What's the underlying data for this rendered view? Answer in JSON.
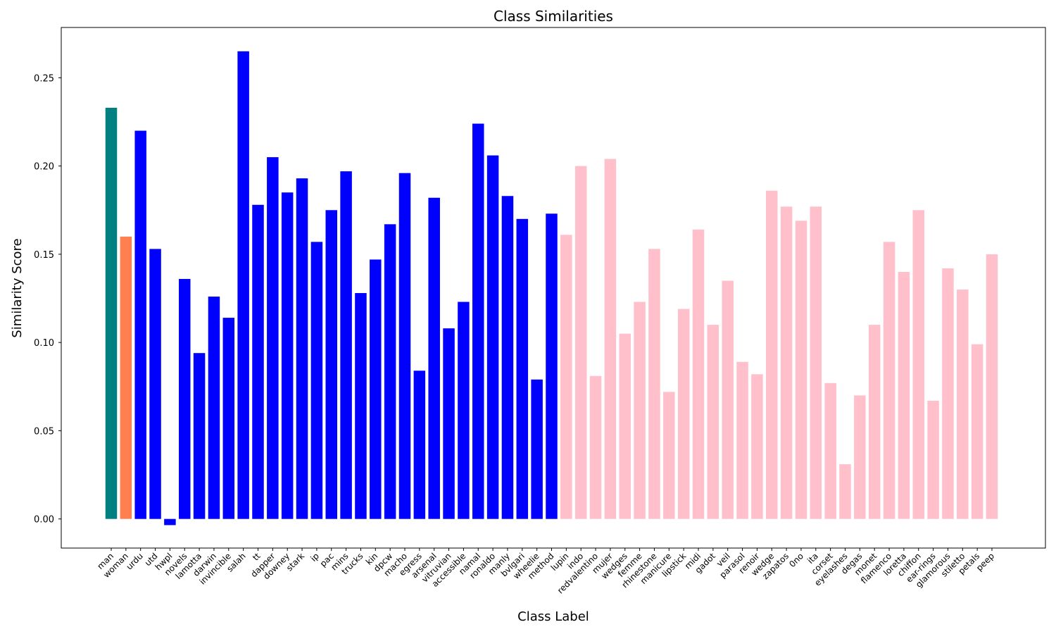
{
  "chart_data": {
    "type": "bar",
    "title": "Class Similarities",
    "xlabel": "Class Label",
    "ylabel": "Similarity Score",
    "ylim": [
      -0.0165,
      0.2785
    ],
    "yticks": [
      "0.00",
      "0.05",
      "0.10",
      "0.15",
      "0.20",
      "0.25"
    ],
    "ytick_values": [
      0.0,
      0.05,
      0.1,
      0.15,
      0.2,
      0.25
    ],
    "grid": false,
    "legend": "none",
    "categories": [
      "man",
      "woman",
      "urdu",
      "utd",
      "hwpl",
      "novels",
      "lamotta",
      "darwin",
      "invincible",
      "salah",
      "tt",
      "dapper",
      "downey",
      "stark",
      "ip",
      "pac",
      "mins",
      "trucks",
      "kin",
      "dpcw",
      "macho",
      "egress",
      "arsenal",
      "vitruvian",
      "accessible",
      "namal",
      "ronaldo",
      "manly",
      "bvlgari",
      "wheelie",
      "method",
      "lupin",
      "indo",
      "redvalentino",
      "mujer",
      "wedges",
      "femme",
      "rhinestone",
      "manicure",
      "lipstick",
      "midi",
      "gadot",
      "veil",
      "parasol",
      "renoir",
      "wedge",
      "zapatos",
      "0no",
      "ita",
      "corset",
      "eyelashes",
      "degas",
      "monet",
      "flamenco",
      "loretta",
      "chiffon",
      "ear-rings",
      "glamorous",
      "stiletto",
      "petals",
      "peep"
    ],
    "values": [
      0.233,
      0.16,
      0.22,
      0.153,
      -0.0035,
      0.136,
      0.094,
      0.126,
      0.114,
      0.265,
      0.178,
      0.205,
      0.185,
      0.193,
      0.157,
      0.175,
      0.197,
      0.128,
      0.147,
      0.167,
      0.196,
      0.084,
      0.182,
      0.108,
      0.123,
      0.224,
      0.206,
      0.183,
      0.17,
      0.079,
      0.173,
      0.161,
      0.2,
      0.081,
      0.204,
      0.105,
      0.123,
      0.153,
      0.072,
      0.119,
      0.164,
      0.11,
      0.135,
      0.089,
      0.082,
      0.186,
      0.177,
      0.169,
      0.177,
      0.077,
      0.031,
      0.07,
      0.11,
      0.157,
      0.14,
      0.175,
      0.067,
      0.142,
      0.13,
      0.099,
      0.15
    ],
    "colors": [
      "#008080",
      "#ff7f50",
      "#0000ff",
      "#0000ff",
      "#0000ff",
      "#0000ff",
      "#0000ff",
      "#0000ff",
      "#0000ff",
      "#0000ff",
      "#0000ff",
      "#0000ff",
      "#0000ff",
      "#0000ff",
      "#0000ff",
      "#0000ff",
      "#0000ff",
      "#0000ff",
      "#0000ff",
      "#0000ff",
      "#0000ff",
      "#0000ff",
      "#0000ff",
      "#0000ff",
      "#0000ff",
      "#0000ff",
      "#0000ff",
      "#0000ff",
      "#0000ff",
      "#0000ff",
      "#0000ff",
      "#ffc0cb",
      "#ffc0cb",
      "#ffc0cb",
      "#ffc0cb",
      "#ffc0cb",
      "#ffc0cb",
      "#ffc0cb",
      "#ffc0cb",
      "#ffc0cb",
      "#ffc0cb",
      "#ffc0cb",
      "#ffc0cb",
      "#ffc0cb",
      "#ffc0cb",
      "#ffc0cb",
      "#ffc0cb",
      "#ffc0cb",
      "#ffc0cb",
      "#ffc0cb",
      "#ffc0cb",
      "#ffc0cb",
      "#ffc0cb",
      "#ffc0cb",
      "#ffc0cb",
      "#ffc0cb",
      "#ffc0cb",
      "#ffc0cb",
      "#ffc0cb",
      "#ffc0cb",
      "#ffc0cb"
    ]
  }
}
